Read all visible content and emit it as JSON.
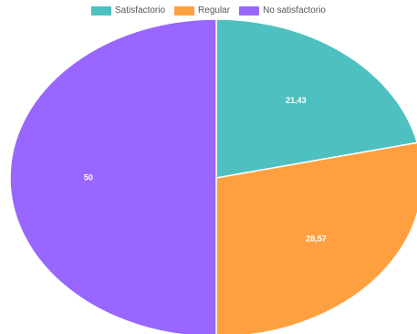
{
  "chart_data": {
    "type": "pie",
    "title": "",
    "categories": [
      "Satisfactorio",
      "Regular",
      "No satisfactorio"
    ],
    "values": [
      21.43,
      28.57,
      50
    ],
    "value_labels": [
      "21,43",
      "28,57",
      "50"
    ],
    "colors": [
      "#4fc0c0",
      "#ffa040",
      "#9966ff"
    ],
    "legend_position": "top",
    "start_angle": "12 o'clock",
    "direction": "clockwise"
  }
}
